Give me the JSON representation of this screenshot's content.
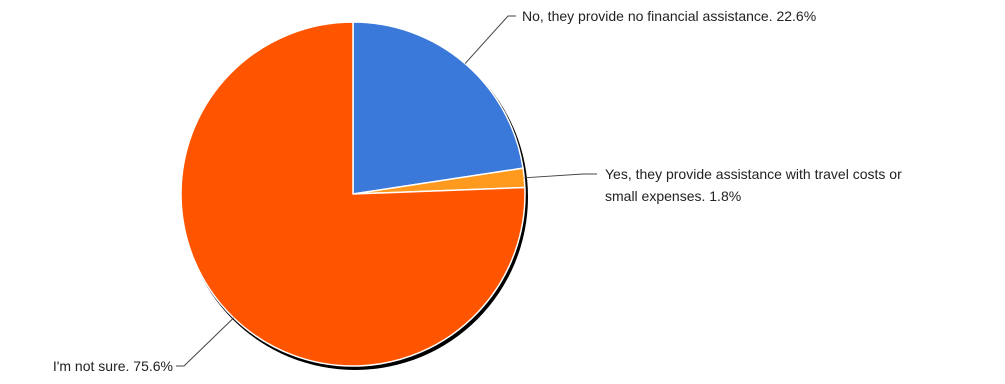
{
  "chart_data": {
    "type": "pie",
    "title": "",
    "slices": [
      {
        "label": "No, they provide no financial assistance.",
        "value": 22.6,
        "value_label": "22.6%",
        "color": "#3a78d9",
        "label_lines": [
          "No, they provide no financial assistance. 22.6%"
        ]
      },
      {
        "label": "Yes, they provide assistance with travel costs or small expenses.",
        "value": 1.8,
        "value_label": "1.8%",
        "color": "#ff9a1f",
        "label_lines": [
          "Yes, they provide assistance with travel costs or",
          "small expenses. 1.8%"
        ]
      },
      {
        "label": "I'm not sure.",
        "value": 75.6,
        "value_label": "75.6%",
        "color": "#ff5500",
        "label_lines": [
          "I'm not sure. 75.6%"
        ]
      }
    ],
    "start_angle_deg": 0,
    "direction": "clockwise",
    "legend": "none"
  }
}
